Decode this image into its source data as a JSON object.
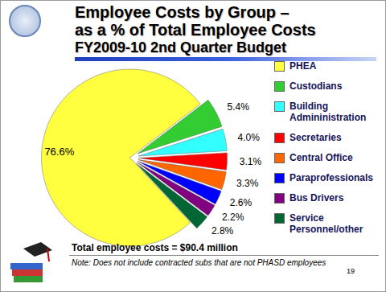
{
  "chart_data": {
    "type": "pie",
    "title": "Employee Costs by Group –\nas a % of Total Employee Costs",
    "subtitle": "FY2009-10 2nd Quarter Budget",
    "categories": [
      "PHEA",
      "Custodians",
      "Building Admininistration",
      "Secretaries",
      "Central Office",
      "Paraprofessionals",
      "Bus Drivers",
      "Service Personnel/other"
    ],
    "values": [
      76.6,
      5.4,
      4.0,
      3.1,
      3.3,
      2.6,
      2.2,
      2.8
    ],
    "value_labels": [
      "76.6%",
      "5.4%",
      "4.0%",
      "3.1%",
      "3.3%",
      "2.6%",
      "2.2%",
      "2.8%"
    ],
    "colors": [
      "#ffff40",
      "#33cc33",
      "#33ffff",
      "#ff0000",
      "#ff6600",
      "#0000ff",
      "#800080",
      "#006633"
    ],
    "data_labels": true,
    "legend": "right",
    "annotations": [
      "Total employee costs = $90.4 million",
      "Note: Does not include contracted subs that are not PHASD employees",
      "19"
    ]
  }
}
